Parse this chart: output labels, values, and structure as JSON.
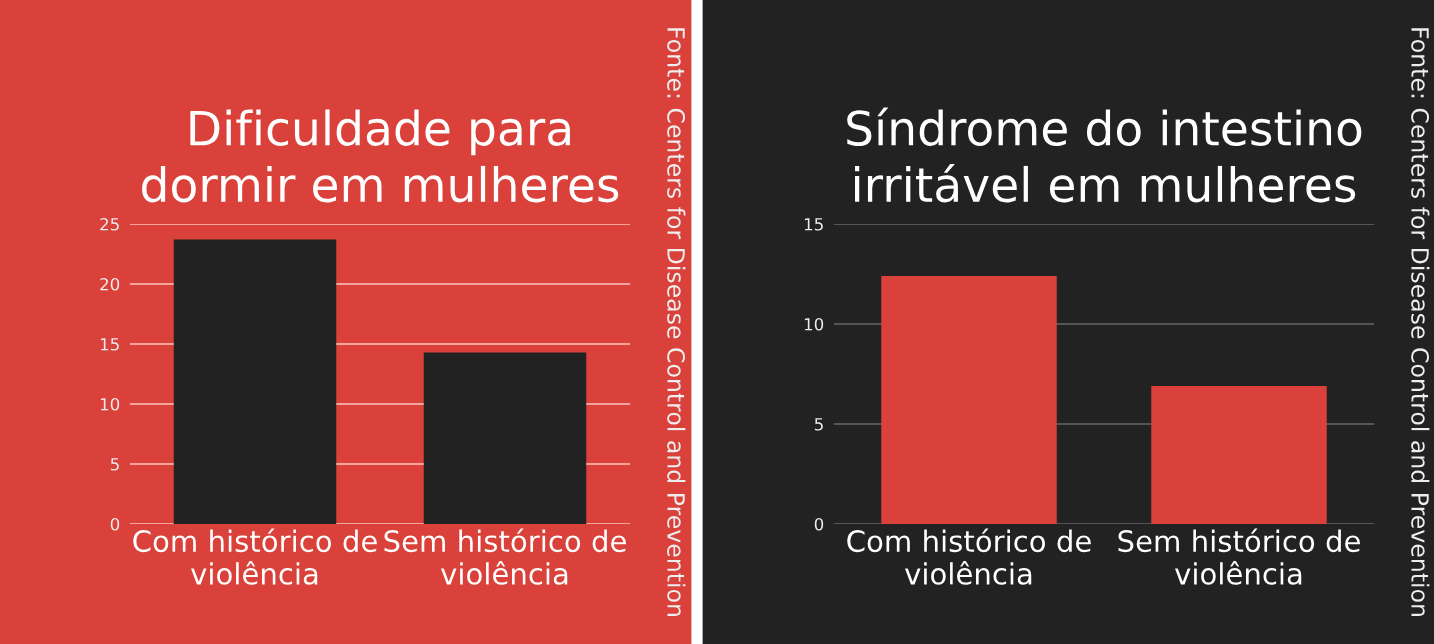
{
  "chart_data": [
    {
      "type": "bar",
      "title": "Dificuldade para dormir em mulheres",
      "categories": [
        "Com histórico de violência",
        "Sem histórico de violência"
      ],
      "values": [
        23.7,
        14.3
      ],
      "color": "#222222",
      "ylim": [
        0,
        25
      ],
      "yticks": [
        0,
        5,
        10,
        15,
        20,
        25
      ],
      "grid": "y",
      "annotations": [
        "Fonte: Centers for Disease Control and Prevention"
      ]
    },
    {
      "type": "bar",
      "title": "Síndrome do intestino irritável em mulheres",
      "categories": [
        "Com histórico de violência",
        "Sem histórico de violência"
      ],
      "values": [
        12.4,
        6.9
      ],
      "color": "#d9413a",
      "ylim": [
        0,
        15
      ],
      "yticks": [
        0,
        5,
        10,
        15
      ],
      "grid": "y",
      "annotations": [
        "Fonte: Centers for Disease Control and Prevention"
      ]
    }
  ]
}
